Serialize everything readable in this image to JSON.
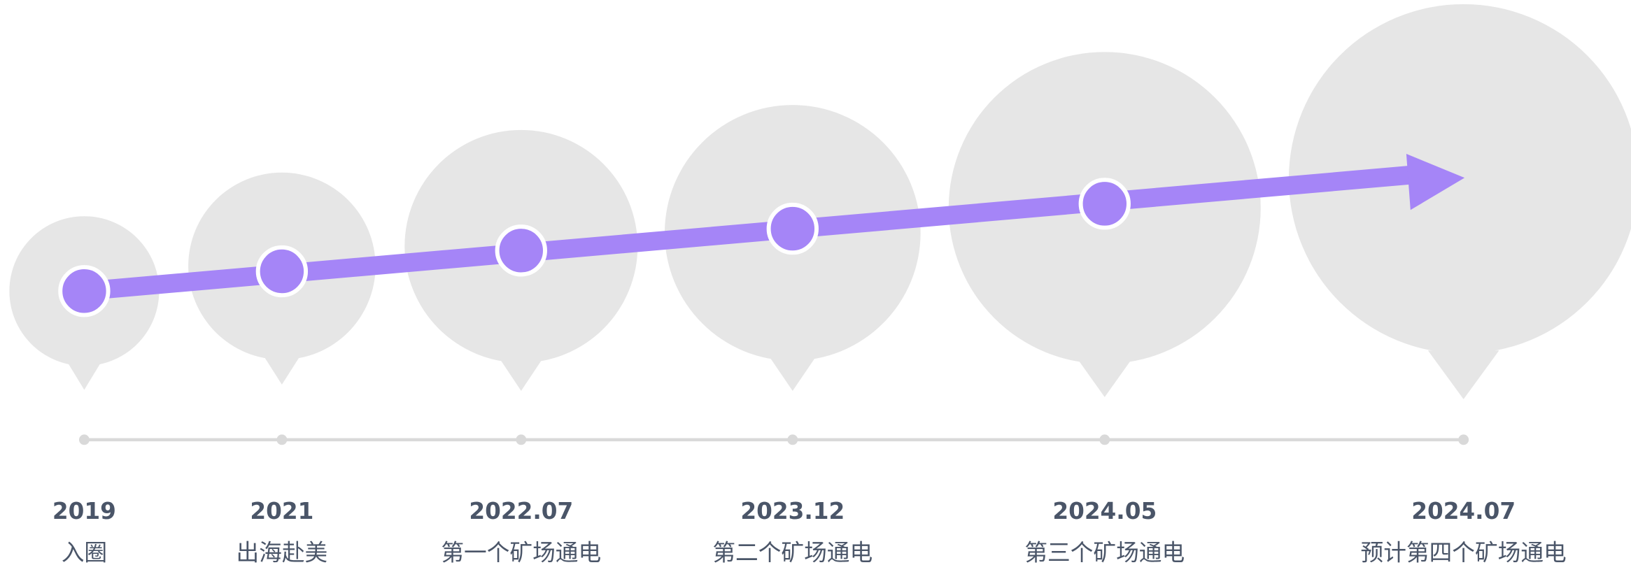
{
  "timeline": {
    "items": [
      {
        "date": "2019",
        "label": "入圈"
      },
      {
        "date": "2021",
        "label": "出海赴美"
      },
      {
        "date": "2022.07",
        "label": "第一个矿场通电"
      },
      {
        "date": "2023.12",
        "label": "第二个矿场通电"
      },
      {
        "date": "2024.05",
        "label": "第三个矿场通电"
      },
      {
        "date": "2024.07",
        "label": "预计第四个矿场通电"
      }
    ]
  }
}
